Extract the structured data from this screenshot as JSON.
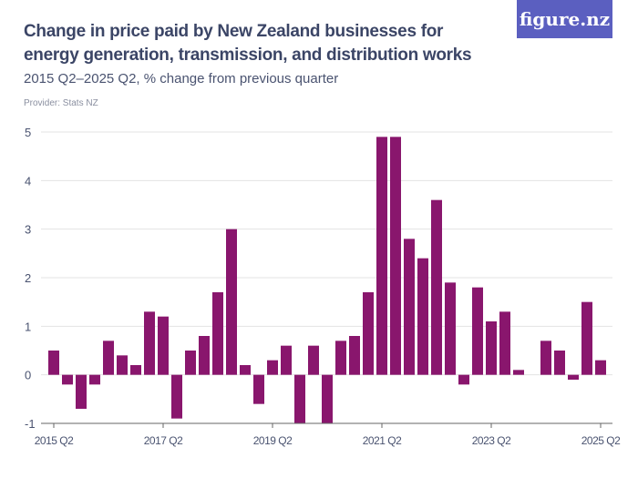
{
  "title": "Change in price paid by New Zealand businesses for energy generation, transmission, and distribution works",
  "subtitle": "2015 Q2–2025 Q2, % change from previous quarter",
  "provider": "Provider: Stats NZ",
  "logo": "figure.nz",
  "colors": {
    "bar": "#89166d",
    "grid": "#e3e3e3",
    "logo_bg": "#5b5fc0"
  },
  "chart_data": {
    "type": "bar",
    "title": "Change in price paid by New Zealand businesses for energy generation, transmission, and distribution works",
    "ylim": [
      -1,
      5
    ],
    "yticks": [
      -1,
      0,
      1,
      2,
      3,
      4,
      5
    ],
    "grid": true,
    "xtick_labels": [
      "2015 Q2",
      "2017 Q2",
      "2019 Q2",
      "2021 Q2",
      "2023 Q2",
      "2025 Q2"
    ],
    "categories": [
      "2015 Q2",
      "2015 Q3",
      "2015 Q4",
      "2016 Q1",
      "2016 Q2",
      "2016 Q3",
      "2016 Q4",
      "2017 Q1",
      "2017 Q2",
      "2017 Q3",
      "2017 Q4",
      "2018 Q1",
      "2018 Q2",
      "2018 Q3",
      "2018 Q4",
      "2019 Q1",
      "2019 Q2",
      "2019 Q3",
      "2019 Q4",
      "2020 Q1",
      "2020 Q2",
      "2020 Q3",
      "2020 Q4",
      "2021 Q1",
      "2021 Q2",
      "2021 Q3",
      "2021 Q4",
      "2022 Q1",
      "2022 Q2",
      "2022 Q3",
      "2022 Q4",
      "2023 Q1",
      "2023 Q2",
      "2023 Q3",
      "2023 Q4",
      "2024 Q1",
      "2024 Q2",
      "2024 Q3",
      "2024 Q4",
      "2025 Q1",
      "2025 Q2"
    ],
    "values": [
      0.5,
      -0.2,
      -0.7,
      -0.2,
      0.7,
      0.4,
      0.2,
      1.3,
      1.2,
      -0.9,
      0.5,
      0.8,
      1.7,
      3.0,
      0.2,
      -0.6,
      0.3,
      0.6,
      -1.0,
      0.6,
      -1.0,
      0.7,
      0.8,
      1.7,
      4.9,
      4.9,
      2.8,
      2.4,
      3.6,
      1.9,
      -0.2,
      1.8,
      1.1,
      1.3,
      0.1,
      0,
      0.7,
      0.5,
      -0.1,
      1.5,
      0.3
    ]
  }
}
